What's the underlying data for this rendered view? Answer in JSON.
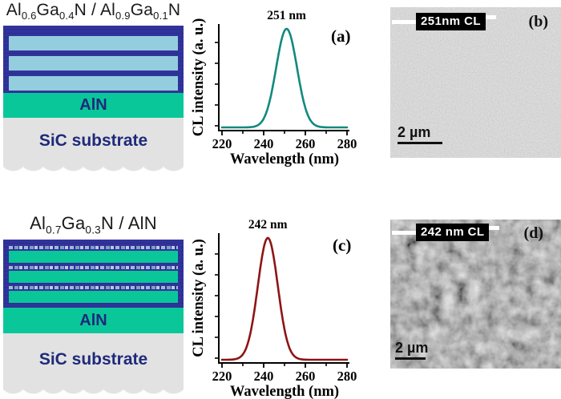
{
  "colors": {
    "navy": "#31339b",
    "stripe_blue": "#94cede",
    "aln_green": "#0ac79a",
    "substrate_gray": "#e2e2e2",
    "label_navy": "#1e2a7a",
    "title_black": "#1a1a1a"
  },
  "structures": [
    {
      "title_plain": "Al0.6Ga0.4N / Al0.9Ga0.1N",
      "title_segments": [
        {
          "t": "Al"
        },
        {
          "sub": "0.6"
        },
        {
          "t": "Ga"
        },
        {
          "sub": "0.4"
        },
        {
          "t": "N / Al"
        },
        {
          "sub": "0.9"
        },
        {
          "t": "Ga"
        },
        {
          "sub": "0.1"
        },
        {
          "t": "N"
        }
      ],
      "aln_label": "AlN",
      "substrate_label": "SiC substrate"
    },
    {
      "title_plain": "Al0.7Ga0.3N / AlN",
      "title_segments": [
        {
          "t": "Al"
        },
        {
          "sub": "0.7"
        },
        {
          "t": "Ga"
        },
        {
          "sub": "0.3"
        },
        {
          "t": "N / AlN"
        }
      ],
      "aln_label": "AlN",
      "substrate_label": "SiC substrate"
    }
  ],
  "chart_data": [
    {
      "type": "line",
      "panel_label": "(a)",
      "xlabel": "Wavelength (nm)",
      "ylabel": "CL intensity (a. u.)",
      "xlim": [
        220,
        280
      ],
      "x_major_ticks": [
        220,
        240,
        260,
        280
      ],
      "x_minor_ticks": [
        230,
        250,
        270
      ],
      "y_axis_unlabeled_arbitrary_units": true,
      "grid": false,
      "peak_annotation": "251 nm",
      "series": [
        {
          "name": "CL spectrum",
          "shape": "gaussian",
          "center_nm": 251,
          "sigma_nm": 5.0,
          "amplitude_au": 1.0,
          "baseline_au": 0.03,
          "color": "#12897e"
        }
      ]
    },
    {
      "type": "line",
      "panel_label": "(c)",
      "xlabel": "Wavelength (nm)",
      "ylabel": "CL intensity (a. u.)",
      "xlim": [
        220,
        280
      ],
      "x_major_ticks": [
        220,
        240,
        260,
        280
      ],
      "x_minor_ticks": [
        230,
        250,
        270
      ],
      "y_axis_unlabeled_arbitrary_units": true,
      "grid": false,
      "peak_annotation": "242 nm",
      "series": [
        {
          "name": "CL spectrum",
          "shape": "gaussian",
          "center_nm": 242,
          "sigma_nm": 4.8,
          "amplitude_au": 1.0,
          "baseline_au": 0.03,
          "color": "#8e1414"
        }
      ]
    }
  ],
  "cl_images": [
    {
      "tag_label": "251nm CL",
      "panel_label": "(b)",
      "scale_label": "2 µm"
    },
    {
      "tag_label": "242 nm CL",
      "panel_label": "(d)",
      "scale_label": "2 µm"
    }
  ]
}
